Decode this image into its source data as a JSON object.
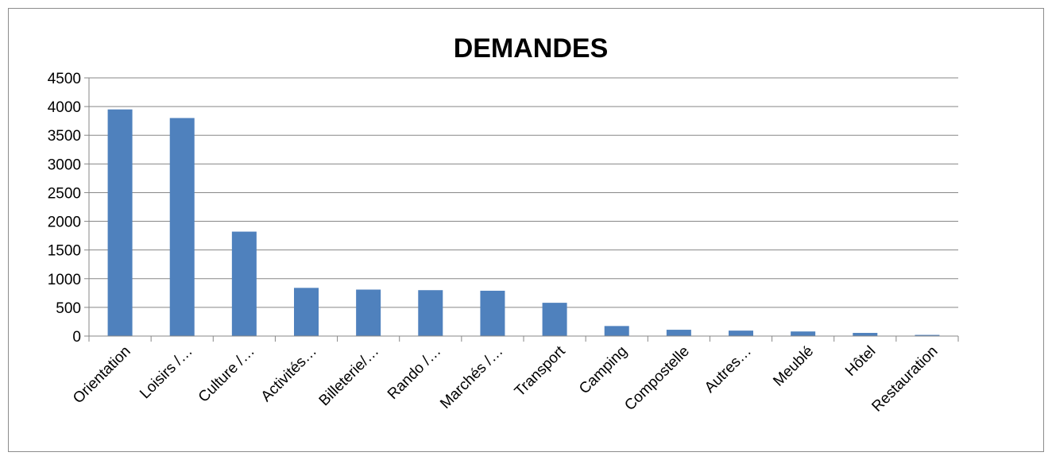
{
  "chart_data": {
    "type": "bar",
    "title": "DEMANDES",
    "xlabel": "",
    "ylabel": "",
    "ylim": [
      0,
      4500
    ],
    "yticks": [
      0,
      500,
      1000,
      1500,
      2000,
      2500,
      3000,
      3500,
      4000,
      4500
    ],
    "grid": true,
    "legend": "none",
    "bar_color": "#4f81bd",
    "categories": [
      "Orientation",
      "Loisirs /…",
      "Culture /…",
      "Activités…",
      "Billeterie/…",
      "Rando /…",
      "Marchés /…",
      "Transport",
      "Camping",
      "Compostelle",
      "Autres…",
      "Meublé",
      "Hôtel",
      "Restauration"
    ],
    "values": [
      3950,
      3800,
      1820,
      840,
      810,
      800,
      790,
      580,
      175,
      110,
      95,
      80,
      55,
      20
    ]
  }
}
